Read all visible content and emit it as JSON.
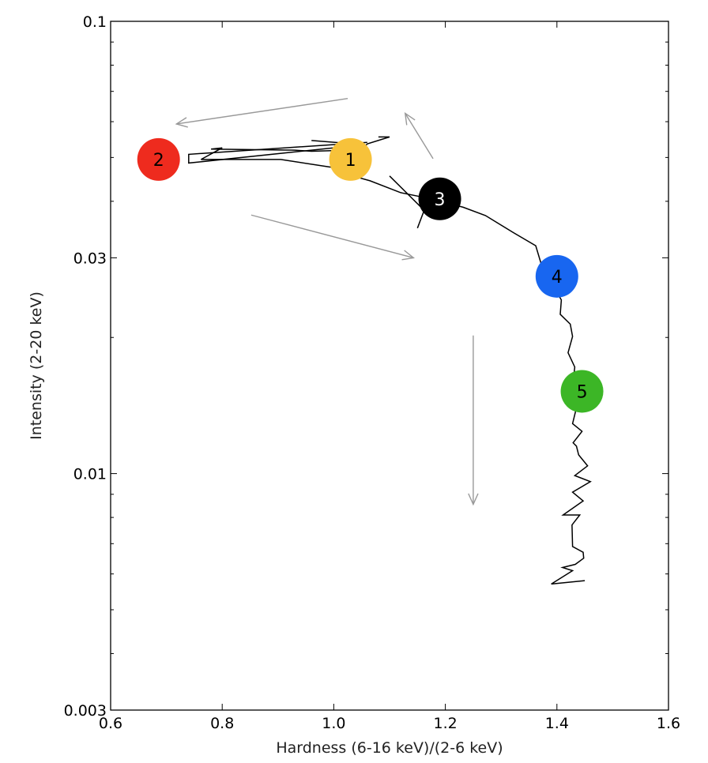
{
  "chart_data": {
    "type": "line",
    "xlabel": "Hardness (6-16 keV)/(2-6 keV)",
    "ylabel": "Intensity (2-20 keV)",
    "xlim": [
      0.6,
      1.6
    ],
    "ylim": [
      0.003,
      0.1
    ],
    "yscale": "log",
    "grid": false,
    "x_ticks": [
      {
        "value": 0.6,
        "label": "0.6"
      },
      {
        "value": 0.8,
        "label": "0.8"
      },
      {
        "value": 1.0,
        "label": "1.0"
      },
      {
        "value": 1.2,
        "label": "1.2"
      },
      {
        "value": 1.4,
        "label": "1.4"
      },
      {
        "value": 1.6,
        "label": "1.6"
      }
    ],
    "y_ticks": [
      {
        "value": 0.003,
        "label": "0.003"
      },
      {
        "value": 0.01,
        "label": "0.01"
      },
      {
        "value": 0.03,
        "label": "0.03"
      },
      {
        "value": 0.1,
        "label": "0.1"
      }
    ],
    "y_minor_ticks": [
      0.004,
      0.005,
      0.006,
      0.007,
      0.008,
      0.009,
      0.02,
      0.04,
      0.05,
      0.06,
      0.07,
      0.08,
      0.09
    ],
    "line_color": "#000000",
    "series": [
      {
        "x": [
          1.08,
          1.1,
          1.06,
          1.05,
          0.96,
          0.93,
          0.78,
          0.8,
          0.762,
          0.905,
          0.999,
          1.026,
          1.065,
          1.12,
          1.175,
          1.232,
          1.272,
          1.322,
          1.362,
          1.374,
          1.392,
          1.408,
          1.406,
          1.424,
          1.428,
          1.42,
          1.432,
          1.428,
          1.437,
          1.428,
          1.445,
          1.429,
          1.435,
          1.439,
          1.455,
          1.432,
          1.46,
          1.428,
          1.447,
          1.411,
          1.441,
          1.427,
          1.428,
          1.447,
          1.448,
          1.433,
          1.41,
          1.428,
          1.39,
          1.45
        ],
        "y": [
          0.0555,
          0.0555,
          0.0536,
          0.052,
          0.0516,
          0.0519,
          0.0522,
          0.0525,
          0.0495,
          0.0495,
          0.0475,
          0.0458,
          0.0444,
          0.0418,
          0.0405,
          0.0388,
          0.0372,
          0.0341,
          0.0319,
          0.0285,
          0.0262,
          0.0242,
          0.0225,
          0.0214,
          0.0201,
          0.0185,
          0.0172,
          0.0156,
          0.0143,
          0.0129,
          0.0124,
          0.0117,
          0.0115,
          0.011,
          0.0104,
          0.0099,
          0.0096,
          0.0091,
          0.0087,
          0.0081,
          0.0081,
          0.0077,
          0.0069,
          0.0067,
          0.0065,
          0.0063,
          0.0062,
          0.0061,
          0.0057,
          0.0058
        ]
      },
      {
        "x": [
          1.06,
          0.74,
          0.74,
          1.05,
          1.02,
          0.96
        ],
        "y": [
          0.054,
          0.0508,
          0.0486,
          0.0533,
          0.0538,
          0.0545
        ]
      },
      {
        "x": [
          1.1,
          1.162,
          1.15
        ],
        "y": [
          0.0455,
          0.0382,
          0.0349
        ]
      }
    ],
    "annotations": [
      {
        "label": "1",
        "x": 1.03,
        "y": 0.0495,
        "color": "#f7c23a",
        "text_color": "#000000"
      },
      {
        "label": "2",
        "x": 0.686,
        "y": 0.0495,
        "color": "#ee2b1e",
        "text_color": "#000000"
      },
      {
        "label": "3",
        "x": 1.19,
        "y": 0.0405,
        "color": "#000000",
        "text_color": "#ffffff"
      },
      {
        "label": "4",
        "x": 1.4,
        "y": 0.0273,
        "color": "#1866f0",
        "text_color": "#000000"
      },
      {
        "label": "5",
        "x": 1.445,
        "y": 0.0152,
        "color": "#3cb626",
        "text_color": "#000000"
      }
    ],
    "arrows": [
      {
        "from": [
          1.025,
          0.0675
        ],
        "to": [
          0.718,
          0.0593
        ],
        "color": "#999999"
      },
      {
        "from": [
          1.178,
          0.0497
        ],
        "to": [
          1.128,
          0.0626
        ],
        "color": "#999999"
      },
      {
        "from": [
          0.852,
          0.0373
        ],
        "to": [
          1.143,
          0.03
        ],
        "color": "#999999"
      },
      {
        "from": [
          1.25,
          0.0202
        ],
        "to": [
          1.25,
          0.00855
        ],
        "color": "#999999"
      }
    ]
  }
}
